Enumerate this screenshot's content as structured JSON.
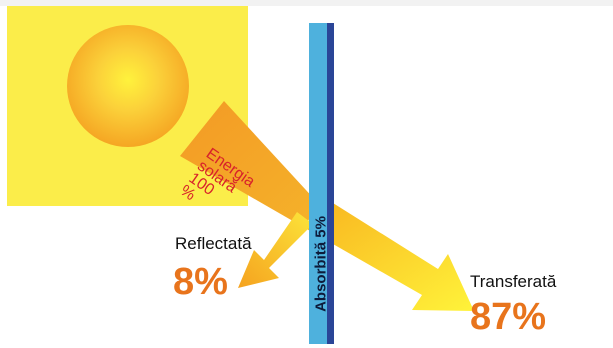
{
  "sun": {
    "label_lines": [
      "Energia",
      "solară",
      "100",
      "%"
    ]
  },
  "glass": {
    "label": "Absorbită 5%"
  },
  "reflected": {
    "label": "Reflectată",
    "percent": "8%"
  },
  "transferred": {
    "label": "Transferată",
    "percent": "87%"
  },
  "colors": {
    "sun_square": "#fbed4a",
    "sun_disc_outer": "#f5a623",
    "sun_disc_center": "#fff23c",
    "beam": "#f5a623",
    "glass_light": "#4eb1dd",
    "glass_dark": "#2a4597",
    "label_red": "#d8232a",
    "percent_orange": "#e8741c"
  }
}
